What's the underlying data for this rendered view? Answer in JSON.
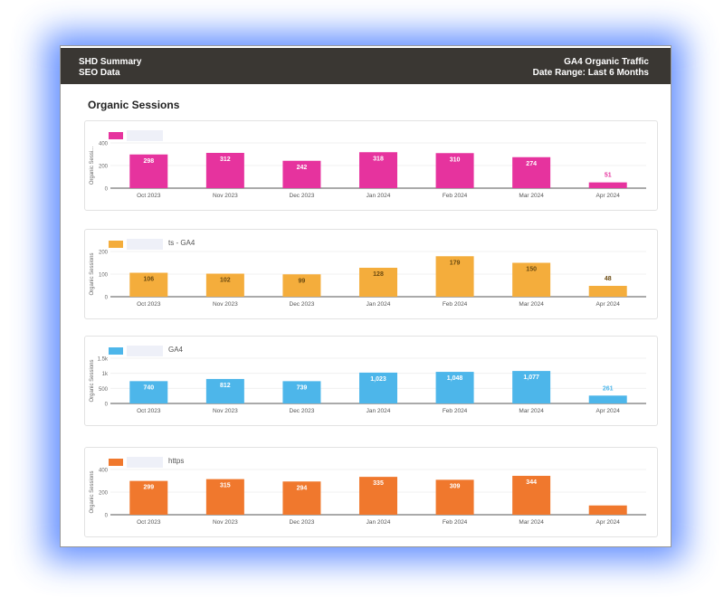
{
  "header": {
    "title": "SHD Summary",
    "subtitle": "SEO Data",
    "right_title": "GA4 Organic Traffic",
    "date_range": "Date Range: Last 6 Months"
  },
  "section_title": "Organic Sessions",
  "chart_data": [
    {
      "type": "bar",
      "title": "",
      "legend": "",
      "color": "#e6339e",
      "label_color": "#ffffff",
      "small_label_color": "#e6339e",
      "ylabel": "Organic Sessi...",
      "ylim": [
        0,
        400
      ],
      "yticks": [
        0,
        200,
        400
      ],
      "ytick_labels": [
        "0",
        "200",
        "400"
      ],
      "categories": [
        "Oct 2023",
        "Nov 2023",
        "Dec 2023",
        "Jan 2024",
        "Feb 2024",
        "Mar 2024",
        "Apr 2024"
      ],
      "values": [
        298,
        312,
        242,
        318,
        310,
        274,
        51
      ]
    },
    {
      "type": "bar",
      "title": "",
      "legend": "ts - GA4",
      "color": "#f4ad3c",
      "label_color": "#6b4a10",
      "small_label_color": "#6b4a10",
      "ylabel": "Organic Sessions",
      "ylim": [
        0,
        200
      ],
      "yticks": [
        0,
        100,
        200
      ],
      "ytick_labels": [
        "0",
        "100",
        "200"
      ],
      "categories": [
        "Oct 2023",
        "Nov 2023",
        "Dec 2023",
        "Jan 2024",
        "Feb 2024",
        "Mar 2024",
        "Apr 2024"
      ],
      "values": [
        106,
        102,
        99,
        128,
        179,
        150,
        48
      ]
    },
    {
      "type": "bar",
      "title": "",
      "legend": "GA4",
      "color": "#4db6ea",
      "label_color": "#ffffff",
      "small_label_color": "#4db6ea",
      "ylabel": "Organic Sessions",
      "ylim": [
        0,
        1500
      ],
      "yticks": [
        0,
        500,
        1000,
        1500
      ],
      "ytick_labels": [
        "0",
        "500",
        "1k",
        "1.5k"
      ],
      "categories": [
        "Oct 2023",
        "Nov 2023",
        "Dec 2023",
        "Jan 2024",
        "Feb 2024",
        "Mar 2024",
        "Apr 2024"
      ],
      "values": [
        740,
        812,
        739,
        1023,
        1048,
        1077,
        261
      ],
      "value_labels": [
        "740",
        "812",
        "739",
        "1,023",
        "1,048",
        "1,077",
        "261"
      ]
    },
    {
      "type": "bar",
      "title": "",
      "legend": "https",
      "color": "#f0782d",
      "label_color": "#ffffff",
      "small_label_color": "#ffffff",
      "ylabel": "Organic Sessions",
      "ylim": [
        0,
        400
      ],
      "yticks": [
        0,
        200,
        400
      ],
      "ytick_labels": [
        "0",
        "200",
        "400"
      ],
      "categories": [
        "Oct 2023",
        "Nov 2023",
        "Dec 2023",
        "Jan 2024",
        "Feb 2024",
        "Mar 2024",
        "Apr 2024"
      ],
      "values": [
        299,
        315,
        294,
        335,
        309,
        344,
        82
      ]
    }
  ]
}
